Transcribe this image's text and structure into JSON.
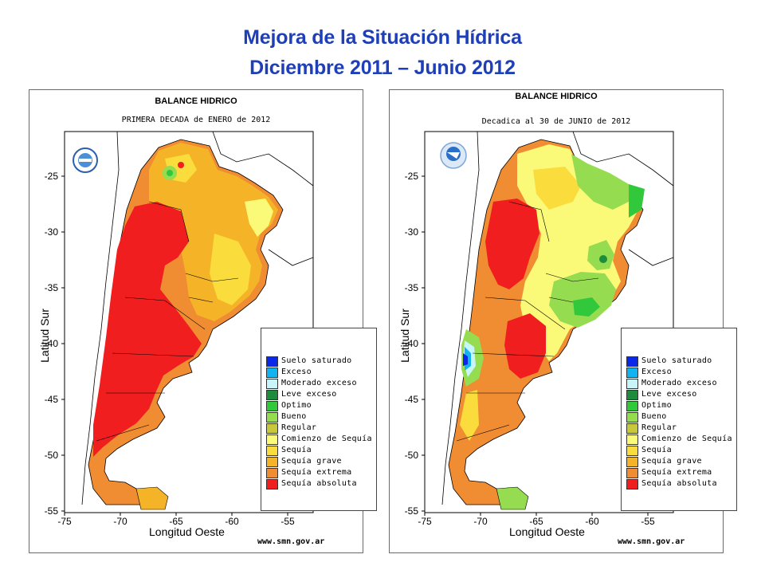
{
  "title_line1": "Mejora de la Situación Hídrica",
  "title_line2": "Diciembre 2011 – Junio 2012",
  "maps": [
    {
      "title": "BALANCE HIDRICO",
      "subtitle": "PRIMERA DECADA de ENERO de 2012",
      "ylabel": "Latitud Sur",
      "xlabel": "Longitud Oeste",
      "website": "www.smn.gov.ar",
      "yticks": [
        "-25",
        "-30",
        "-35",
        "-40",
        "-45",
        "-50",
        "-55"
      ],
      "xticks": [
        "-75",
        "-70",
        "-65",
        "-60",
        "-55"
      ]
    },
    {
      "title": "BALANCE HIDRICO",
      "subtitle": "Decadica al 30 de JUNIO de 2012",
      "ylabel": "Latitud Sur",
      "xlabel": "Longitud Oeste",
      "website": "www.smn.gov.ar",
      "yticks": [
        "-25",
        "-30",
        "-35",
        "-40",
        "-45",
        "-50",
        "-55"
      ],
      "xticks": [
        "-75",
        "-70",
        "-65",
        "-60",
        "-55"
      ]
    }
  ],
  "legend": [
    {
      "label": "Suelo saturado",
      "color": "#0a28e6"
    },
    {
      "label": "Exceso",
      "color": "#12b4f0"
    },
    {
      "label": "Moderado exceso",
      "color": "#c8f5fa"
    },
    {
      "label": "Leve exceso",
      "color": "#1e8c3c"
    },
    {
      "label": "Optimo",
      "color": "#32c83c"
    },
    {
      "label": "Bueno",
      "color": "#96dc50"
    },
    {
      "label": "Regular",
      "color": "#c8c83c"
    },
    {
      "label": "Comienzo de Sequía",
      "color": "#fafa78"
    },
    {
      "label": "Sequía",
      "color": "#fadc3c"
    },
    {
      "label": "Sequía grave",
      "color": "#f5b428"
    },
    {
      "label": "Sequía extrema",
      "color": "#f08c32"
    },
    {
      "label": "Sequía absoluta",
      "color": "#f01e1e"
    }
  ]
}
